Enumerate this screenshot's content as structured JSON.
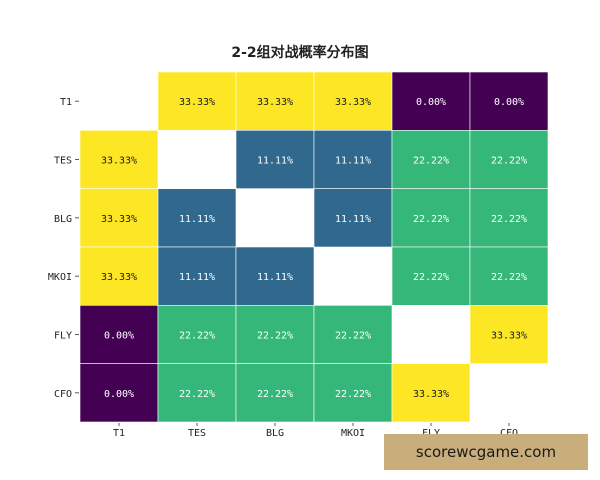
{
  "chart_data": {
    "type": "heatmap",
    "title": "2-2组对战概率分布图",
    "rows": [
      "T1",
      "TES",
      "BLG",
      "MKOI",
      "FLY",
      "CFO"
    ],
    "cols": [
      "T1",
      "TES",
      "BLG",
      "MKOI",
      "FLY",
      "CFO"
    ],
    "values": [
      [
        null,
        33.33,
        33.33,
        33.33,
        0.0,
        0.0
      ],
      [
        33.33,
        null,
        11.11,
        11.11,
        22.22,
        22.22
      ],
      [
        33.33,
        11.11,
        null,
        11.11,
        22.22,
        22.22
      ],
      [
        33.33,
        11.11,
        11.11,
        null,
        22.22,
        22.22
      ],
      [
        0.0,
        22.22,
        22.22,
        22.22,
        null,
        33.33
      ],
      [
        0.0,
        22.22,
        22.22,
        22.22,
        33.33,
        null
      ]
    ],
    "cell_labels": [
      [
        null,
        "33.33%",
        "33.33%",
        "33.33%",
        "0.00%",
        "0.00%"
      ],
      [
        "33.33%",
        null,
        "11.11%",
        "11.11%",
        "22.22%",
        "22.22%"
      ],
      [
        "33.33%",
        "11.11%",
        null,
        "11.11%",
        "22.22%",
        "22.22%"
      ],
      [
        "33.33%",
        "11.11%",
        "11.11%",
        null,
        "22.22%",
        "22.22%"
      ],
      [
        "0.00%",
        "22.22%",
        "22.22%",
        "22.22%",
        null,
        "33.33%"
      ],
      [
        "0.00%",
        "22.22%",
        "22.22%",
        "22.22%",
        "33.33%",
        null
      ]
    ],
    "color_map": {
      "0": "#440154",
      "11.11": "#31688e",
      "22.22": "#35b779",
      "33.33": "#fde725"
    },
    "colors": {
      "dark_text": "#1a1a1a",
      "light_text": "#ffffff",
      "empty_cell": "#ffffff",
      "grid_line": "#ffffff"
    },
    "diagonal": "empty",
    "legend": "none",
    "grid": false
  },
  "watermark": {
    "text": "scorewcgame.com",
    "color": "#c9ad7a"
  }
}
